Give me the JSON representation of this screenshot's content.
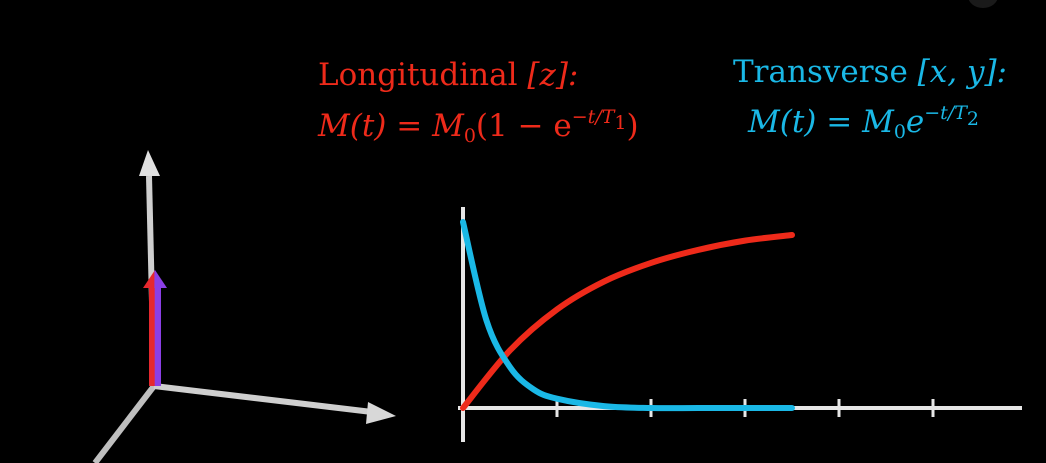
{
  "longitudinal": {
    "title_word": "Longitudinal",
    "title_bracket": "[z]:",
    "lhs": "M(t) = M",
    "subscript_0": "0",
    "rhs_open": "(1 − e",
    "exponent": "−t/T",
    "exponent_sub": "1",
    "rhs_close": ")",
    "color": "#ee2a1a"
  },
  "transverse": {
    "title_word": "Transverse",
    "title_bracket": "[x, y]:",
    "lhs": "M(t) = M",
    "subscript_0": "0",
    "e": "e",
    "exponent": "−t/T",
    "exponent_sub": "2",
    "color": "#1ab8e6"
  },
  "chart_data": {
    "type": "line",
    "title": "",
    "xlabel": "",
    "ylabel": "",
    "grid": false,
    "x_ticks": [
      1,
      2,
      3,
      4,
      5
    ],
    "xlim": [
      0,
      5.9
    ],
    "ylim": [
      0,
      1
    ],
    "series": [
      {
        "x": [
          0,
          0.5,
          1,
          1.5,
          2,
          2.5,
          3,
          3.5
        ],
        "y": [
          0,
          0.31,
          0.53,
          0.68,
          0.78,
          0.85,
          0.9,
          0.93
        ],
        "color": "#ee2a1a"
      },
      {
        "x": [
          0,
          0.25,
          0.5,
          0.75,
          1,
          1.5,
          2,
          2.5,
          3,
          3.5
        ],
        "y": [
          1.0,
          0.47,
          0.22,
          0.1,
          0.05,
          0.01,
          0.0,
          0.0,
          0.0,
          0.0
        ],
        "color": "#1ab8e6"
      }
    ]
  },
  "vector_diagram": {
    "axis_color": "#cfcfcf",
    "vector_colors": [
      "#e6282e",
      "#8b3fe6"
    ]
  }
}
